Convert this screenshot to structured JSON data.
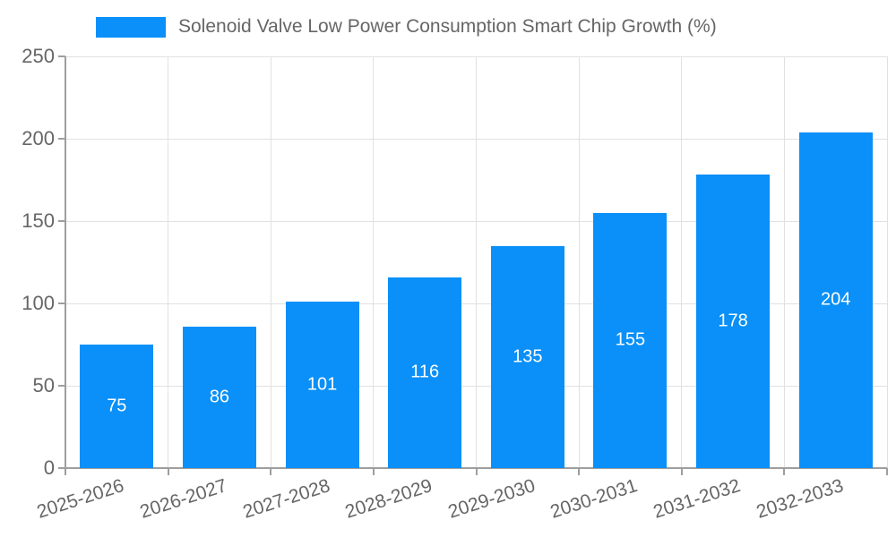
{
  "chart_data": {
    "type": "bar",
    "title": "Solenoid Valve Low Power Consumption Smart Chip Growth (%)",
    "categories": [
      "2025-2026",
      "2026-2027",
      "2027-2028",
      "2028-2029",
      "2029-2030",
      "2030-2031",
      "2031-2032",
      "2032-2033"
    ],
    "values": [
      75,
      86,
      101,
      116,
      135,
      155,
      178,
      204
    ],
    "xlabel": "",
    "ylabel": "",
    "ylim": [
      0,
      250
    ],
    "ytick_step": 50,
    "grid": true,
    "legend_position": "top-left",
    "value_labels": "inside-center",
    "colors": {
      "bar": "#0A90F8",
      "value_label": "#FFFFFF",
      "axis": "#9E9E9E",
      "grid": "#E1E1E1",
      "text": "#666666",
      "background": "#FFFFFF"
    }
  }
}
